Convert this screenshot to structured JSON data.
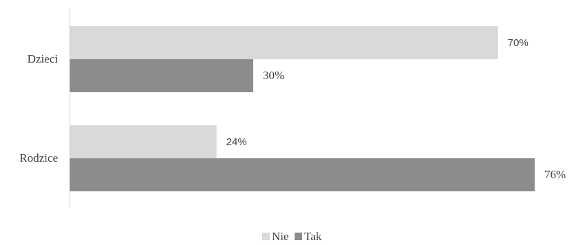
{
  "chart_data": {
    "type": "bar",
    "orientation": "horizontal",
    "categories": [
      "Dzieci",
      "Rodzice"
    ],
    "series": [
      {
        "name": "Nie",
        "values": [
          70,
          24
        ],
        "labels": [
          "70%",
          "24%"
        ],
        "color": "#d9d9d9"
      },
      {
        "name": "Tak",
        "values": [
          30,
          76
        ],
        "labels": [
          "30%",
          "76%"
        ],
        "color": "#8c8c8c"
      }
    ],
    "value_unit": "%",
    "xlim": [
      0,
      76
    ],
    "grid": false,
    "legend": "bottom",
    "axis_color": "#d9d9d9"
  }
}
